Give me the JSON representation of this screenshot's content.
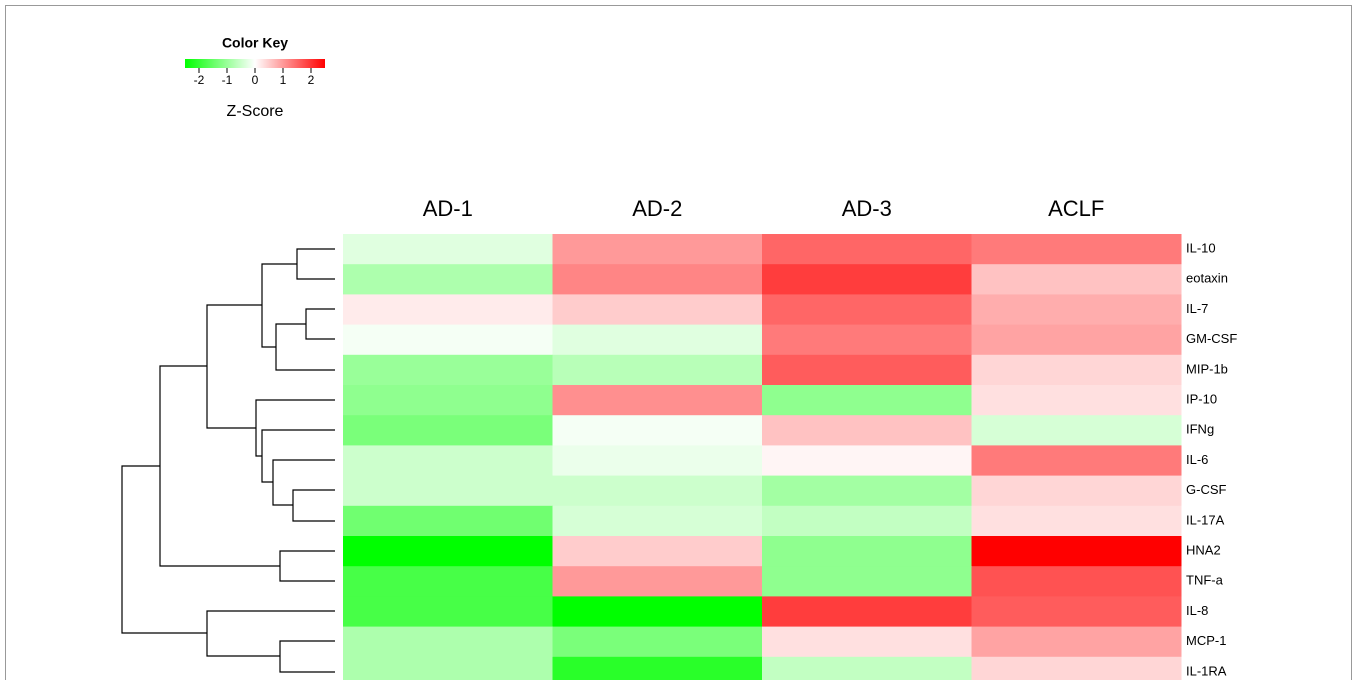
{
  "chart_data": {
    "type": "heatmap",
    "columns": [
      "AD-1",
      "AD-2",
      "AD-3",
      "ACLF"
    ],
    "rows": [
      "IL-10",
      "eotaxin",
      "IL-7",
      "GM-CSF",
      "MIP-1b",
      "IP-10",
      "IFNg",
      "IL-6",
      "G-CSF",
      "IL-17A",
      "HNA2",
      "TNF-a",
      "IL-8",
      "MCP-1",
      "IL-1RA"
    ],
    "values": [
      [
        -0.3,
        1.0,
        1.5,
        1.3
      ],
      [
        -0.8,
        1.2,
        1.9,
        0.6
      ],
      [
        0.2,
        0.5,
        1.5,
        0.8
      ],
      [
        -0.1,
        -0.3,
        1.3,
        0.9
      ],
      [
        -1.0,
        -0.7,
        1.6,
        0.4
      ],
      [
        -1.1,
        1.1,
        -1.1,
        0.3
      ],
      [
        -1.3,
        -0.1,
        0.6,
        -0.4
      ],
      [
        -0.5,
        -0.2,
        0.1,
        1.3
      ],
      [
        -0.5,
        -0.5,
        -0.9,
        0.4
      ],
      [
        -1.4,
        -0.4,
        -0.6,
        0.3
      ],
      [
        -2.5,
        0.5,
        -1.1,
        2.5
      ],
      [
        -1.8,
        1.0,
        -1.1,
        1.7
      ],
      [
        -1.8,
        -2.5,
        1.9,
        1.6
      ],
      [
        -0.8,
        -1.3,
        0.3,
        0.9
      ],
      [
        -0.8,
        -2.1,
        -0.6,
        0.4
      ]
    ],
    "colorbar": {
      "title": "Color Key",
      "label": "Z-Score",
      "lim": [
        -2.5,
        2.5
      ],
      "ticks": [
        -2,
        -1,
        0,
        1,
        2
      ],
      "low_color": "#00ff00",
      "mid_color": "#ffffff",
      "high_color": "#ff0000"
    }
  }
}
